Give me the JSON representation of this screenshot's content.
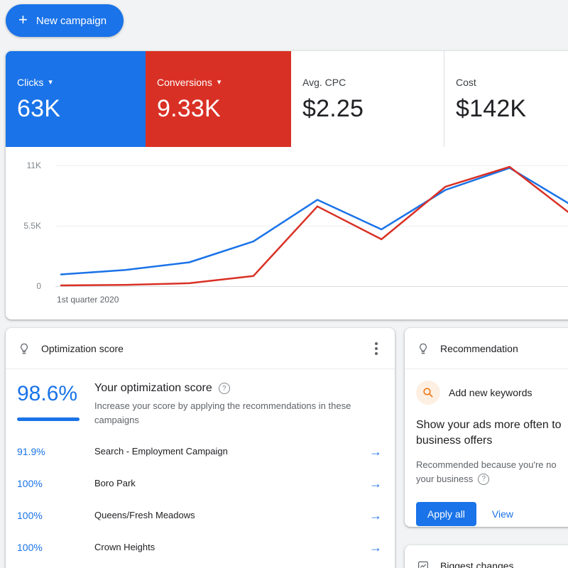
{
  "toolbar": {
    "new_campaign_label": "New campaign"
  },
  "glyphs": {
    "plus": "+",
    "caret": "▾",
    "arrow": "→",
    "help": "?"
  },
  "colors": {
    "blue": "#1a73e8",
    "red": "#d93025",
    "grey_text": "#5f6368",
    "page_bg": "#f1f3f4"
  },
  "metrics": {
    "tiles": [
      {
        "label": "Clicks",
        "value": "63K",
        "bg": "#1a73e8",
        "selected": true
      },
      {
        "label": "Conversions",
        "value": "9.33K",
        "bg": "#d93025",
        "selected": true
      },
      {
        "label": "Avg. CPC",
        "value": "$2.25",
        "bg": "#ffffff",
        "selected": false
      },
      {
        "label": "Cost",
        "value": "$142K",
        "bg": "#ffffff",
        "selected": false
      }
    ]
  },
  "chart_data": {
    "type": "line",
    "x": [
      1,
      2,
      3,
      4,
      5,
      6,
      7,
      8,
      9
    ],
    "series": [
      {
        "name": "Clicks",
        "color": "#1a73e8",
        "values": [
          1.1,
          1.5,
          2.2,
          4.1,
          7.9,
          5.2,
          8.8,
          10.8,
          7.3
        ]
      },
      {
        "name": "Conversions",
        "color": "#d93025",
        "values": [
          0.1,
          0.15,
          0.3,
          0.95,
          7.3,
          4.3,
          9.1,
          10.9,
          6.4
        ]
      }
    ],
    "unit": "K",
    "ylim": [
      0,
      11
    ],
    "yticks": [
      {
        "label": "0",
        "value": 0
      },
      {
        "label": "5.5K",
        "value": 5.5
      },
      {
        "label": "11K",
        "value": 11
      }
    ],
    "xlabel": "1st quarter 2020",
    "grid": "horizontal",
    "legend": "none"
  },
  "optimization": {
    "title": "Optimization score",
    "score": "98.6%",
    "heading": "Your optimization score",
    "description": "Increase your score by applying the recommendations in these campaigns",
    "rows": [
      {
        "score": "91.9%",
        "name": "Search - Employment Campaign"
      },
      {
        "score": "100%",
        "name": "Boro Park"
      },
      {
        "score": "100%",
        "name": "Queens/Fresh Meadows"
      },
      {
        "score": "100%",
        "name": "Crown Heights"
      }
    ]
  },
  "recommendation": {
    "title": "Recommendation",
    "tag": "Add new keywords",
    "heading_line1": "Show your ads more often to",
    "heading_line2": "business offers",
    "desc_line1": "Recommended because you're no",
    "desc_line2": "your business",
    "apply_label": "Apply all",
    "view_label": "View"
  },
  "biggest_changes": {
    "title": "Biggest changes"
  }
}
